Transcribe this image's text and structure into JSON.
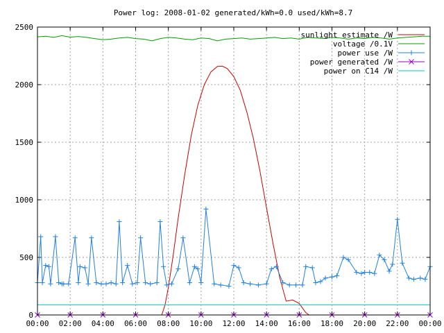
{
  "chart_data": {
    "type": "line",
    "title": "Power log: 2008-01-02 generated/kWh=0.0 used/kWh=8.7",
    "xlabel": "",
    "ylabel": "",
    "xlim": [
      0,
      24
    ],
    "ylim": [
      0,
      2500
    ],
    "grid": true,
    "legend_position": "top-right",
    "x_tick_labels": [
      "00:00",
      "02:00",
      "04:00",
      "06:00",
      "08:00",
      "10:00",
      "12:00",
      "14:00",
      "16:00",
      "18:00",
      "20:00",
      "22:00",
      "00:00"
    ],
    "x_tick_values": [
      0,
      2,
      4,
      6,
      8,
      10,
      12,
      14,
      16,
      18,
      20,
      22,
      24
    ],
    "y_tick_values": [
      0,
      500,
      1000,
      1500,
      2000,
      2500
    ],
    "y_tick_labels": [
      "0",
      "500",
      "1000",
      "1500",
      "2000",
      "2500"
    ],
    "series": [
      {
        "name": "sunlight estimate /W",
        "color": "#cc0000",
        "marker": "none",
        "x": [
          7.6,
          7.8,
          8.0,
          8.3,
          8.6,
          9.0,
          9.4,
          9.8,
          10.2,
          10.6,
          11.0,
          11.3,
          11.6,
          12.0,
          12.4,
          12.8,
          13.2,
          13.6,
          14.0,
          14.4,
          14.8,
          15.2,
          15.6,
          16.0,
          16.4,
          16.6
        ],
        "y": [
          0,
          90,
          240,
          520,
          840,
          1220,
          1560,
          1820,
          2000,
          2110,
          2158,
          2160,
          2140,
          2070,
          1950,
          1760,
          1530,
          1250,
          930,
          620,
          330,
          120,
          130,
          100,
          20,
          0
        ]
      },
      {
        "name": "voltage /0.1V",
        "color": "#00a000",
        "marker": "none",
        "x": [
          0,
          0.5,
          1.0,
          1.5,
          2.0,
          2.5,
          3.0,
          3.5,
          4.0,
          4.5,
          5.0,
          5.5,
          6.0,
          6.5,
          7.0,
          7.5,
          8.0,
          8.5,
          9.0,
          9.5,
          10.0,
          10.5,
          11.0,
          11.5,
          12.0,
          12.5,
          13.0,
          13.5,
          14.0,
          14.5,
          15.0,
          15.5,
          16.0,
          16.5,
          17.0,
          17.5,
          18.0,
          18.5,
          19.0,
          19.5,
          20.0,
          20.5,
          21.0,
          21.5,
          22.0,
          22.5,
          23.0,
          23.5,
          24.0
        ],
        "y": [
          2415,
          2420,
          2410,
          2425,
          2412,
          2418,
          2410,
          2400,
          2390,
          2395,
          2405,
          2410,
          2400,
          2395,
          2380,
          2400,
          2410,
          2405,
          2395,
          2390,
          2405,
          2400,
          2380,
          2395,
          2400,
          2405,
          2395,
          2400,
          2405,
          2410,
          2400,
          2405,
          2395,
          2410,
          2405,
          2400,
          2410,
          2405,
          2395,
          2405,
          2400,
          2410,
          2405,
          2395,
          2405,
          2410,
          2415,
          2420,
          2420
        ]
      },
      {
        "name": "power use /W",
        "color": "#2080e0",
        "marker": "+",
        "x": [
          0.0,
          0.2,
          0.3,
          0.5,
          0.7,
          0.8,
          1.1,
          1.3,
          1.5,
          1.6,
          1.9,
          2.3,
          2.5,
          2.6,
          2.9,
          3.1,
          3.3,
          3.6,
          3.9,
          4.2,
          4.5,
          4.8,
          5.0,
          5.2,
          5.5,
          5.8,
          6.1,
          6.3,
          6.6,
          6.9,
          7.3,
          7.5,
          7.7,
          7.9,
          8.2,
          8.6,
          8.9,
          9.3,
          9.6,
          9.8,
          10.0,
          10.3,
          10.8,
          11.2,
          11.7,
          12.0,
          12.3,
          12.6,
          13.0,
          13.5,
          14.0,
          14.3,
          14.6,
          15.0,
          15.4,
          15.8,
          16.2,
          16.4,
          16.8,
          17.0,
          17.3,
          17.6,
          18.0,
          18.3,
          18.7,
          19.0,
          19.5,
          19.8,
          20.0,
          20.3,
          20.6,
          20.9,
          21.2,
          21.5,
          21.7,
          22.0,
          22.3,
          22.7,
          23.0,
          23.4,
          23.7,
          24.0
        ],
        "y": [
          280,
          680,
          280,
          430,
          420,
          270,
          680,
          280,
          270,
          270,
          270,
          670,
          280,
          420,
          410,
          270,
          670,
          280,
          270,
          270,
          280,
          270,
          810,
          280,
          430,
          270,
          280,
          670,
          280,
          270,
          280,
          810,
          420,
          260,
          270,
          400,
          670,
          280,
          420,
          400,
          280,
          920,
          270,
          260,
          250,
          430,
          410,
          280,
          270,
          260,
          270,
          400,
          420,
          280,
          260,
          260,
          260,
          420,
          410,
          280,
          290,
          320,
          330,
          340,
          500,
          480,
          370,
          360,
          370,
          370,
          360,
          520,
          480,
          380,
          440,
          830,
          450,
          320,
          310,
          320,
          310,
          420
        ]
      },
      {
        "name": "power generated /W",
        "color": "#9400d3",
        "marker": "x",
        "x": [
          0,
          2,
          4,
          6,
          8,
          10,
          12,
          14,
          16,
          18,
          20,
          22,
          24
        ],
        "y": [
          0,
          0,
          0,
          0,
          0,
          0,
          0,
          0,
          0,
          0,
          0,
          0,
          0
        ]
      },
      {
        "name": "power on C14 /W",
        "color": "#00c8c8",
        "marker": "none",
        "x": [
          0,
          4,
          8,
          12,
          16,
          20,
          24
        ],
        "y": [
          88,
          88,
          88,
          88,
          88,
          88,
          88
        ]
      }
    ]
  }
}
